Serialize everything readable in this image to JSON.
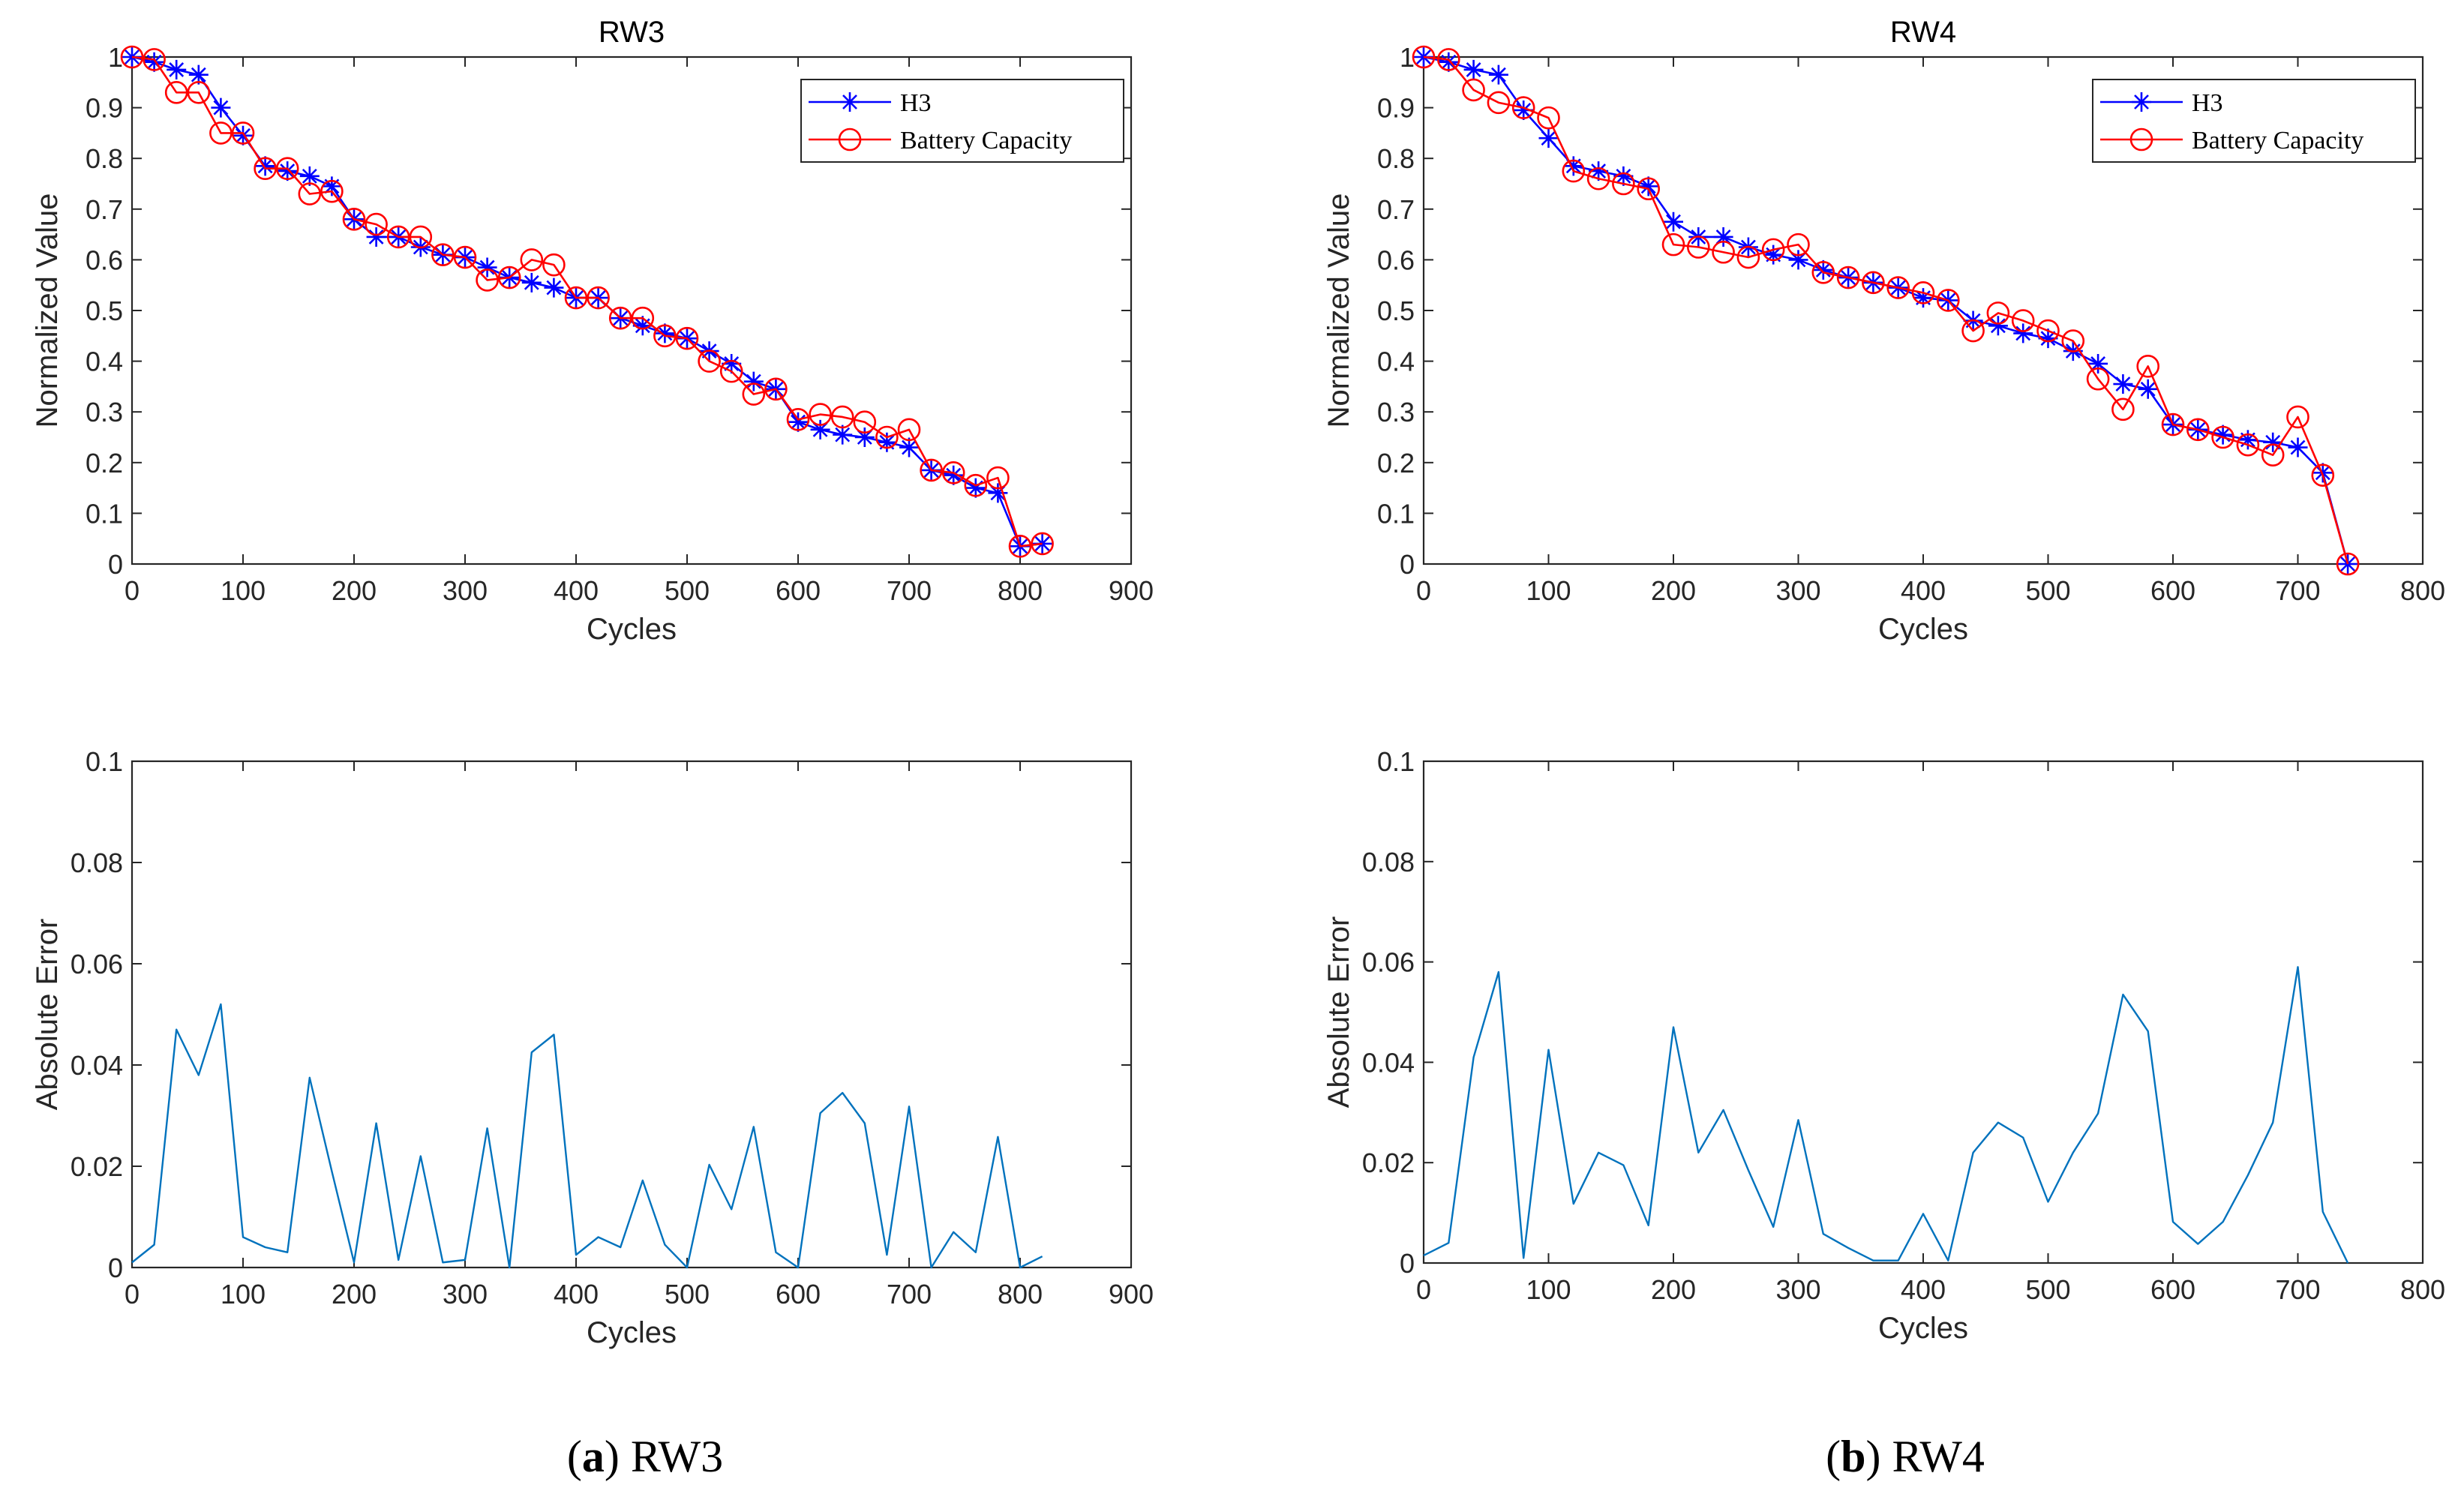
{
  "colors": {
    "h3": "#0000ff",
    "capacity": "#ff0000",
    "error": "#0072bd",
    "axis": "#262626"
  },
  "captions": [
    {
      "paren_open": "(",
      "letter": "a",
      "paren_close": ")",
      "label": " RW3"
    },
    {
      "paren_open": "(",
      "letter": "b",
      "paren_close": ")",
      "label": " RW4"
    }
  ],
  "chart_data": [
    {
      "id": "rw3-top",
      "type": "line",
      "title": "RW3",
      "xlabel": "Cycles",
      "ylabel": "Normalized Value",
      "xlim": [
        0,
        900
      ],
      "ylim": [
        0,
        1
      ],
      "xticks": [
        0,
        100,
        200,
        300,
        400,
        500,
        600,
        700,
        800,
        900
      ],
      "xtick_labels": [
        "0",
        "100",
        "200",
        "300",
        "400",
        "500",
        "600",
        "700",
        "800",
        "900"
      ],
      "yticks": [
        0,
        0.1,
        0.2,
        0.3,
        0.4,
        0.5,
        0.6,
        0.7,
        0.8,
        0.9,
        1
      ],
      "ytick_labels": [
        "0",
        "0.1",
        "0.2",
        "0.3",
        "0.4",
        "0.5",
        "0.6",
        "0.7",
        "0.8",
        "0.9",
        "1"
      ],
      "legend": "top-right",
      "x": [
        0,
        20,
        40,
        60,
        80,
        100,
        120,
        140,
        160,
        180,
        200,
        220,
        240,
        260,
        280,
        300,
        320,
        340,
        360,
        380,
        400,
        420,
        440,
        460,
        480,
        500,
        520,
        540,
        560,
        580,
        600,
        620,
        640,
        660,
        680,
        700,
        720,
        740,
        760,
        780,
        800,
        820
      ],
      "series": [
        {
          "name": "H3",
          "marker": "star",
          "color_key": "h3",
          "values": [
            1,
            0.99,
            0.975,
            0.965,
            0.9,
            0.845,
            0.785,
            0.775,
            0.765,
            0.745,
            0.68,
            0.645,
            0.645,
            0.625,
            0.61,
            0.605,
            0.585,
            0.565,
            0.555,
            0.545,
            0.525,
            0.525,
            0.485,
            0.47,
            0.455,
            0.445,
            0.42,
            0.395,
            0.36,
            0.345,
            0.28,
            0.265,
            0.255,
            0.25,
            0.24,
            0.23,
            0.185,
            0.175,
            0.15,
            0.14,
            0.035,
            0.04
          ]
        },
        {
          "name": "Battery Capacity",
          "marker": "circle",
          "color_key": "capacity",
          "values": [
            1,
            0.995,
            0.93,
            0.93,
            0.85,
            0.85,
            0.78,
            0.78,
            0.73,
            0.735,
            0.68,
            0.67,
            0.645,
            0.645,
            0.61,
            0.605,
            0.56,
            0.565,
            0.6,
            0.59,
            0.525,
            0.525,
            0.485,
            0.485,
            0.45,
            0.445,
            0.4,
            0.38,
            0.335,
            0.345,
            0.285,
            0.295,
            0.29,
            0.28,
            0.25,
            0.265,
            0.185,
            0.18,
            0.155,
            0.17,
            0.035,
            0.04
          ]
        }
      ]
    },
    {
      "id": "rw4-top",
      "type": "line",
      "title": "RW4",
      "xlabel": "Cycles",
      "ylabel": "Normalized Value",
      "xlim": [
        0,
        800
      ],
      "ylim": [
        0,
        1
      ],
      "xticks": [
        0,
        100,
        200,
        300,
        400,
        500,
        600,
        700,
        800
      ],
      "xtick_labels": [
        "0",
        "100",
        "200",
        "300",
        "400",
        "500",
        "600",
        "700",
        "800"
      ],
      "yticks": [
        0,
        0.1,
        0.2,
        0.3,
        0.4,
        0.5,
        0.6,
        0.7,
        0.8,
        0.9,
        1
      ],
      "ytick_labels": [
        "0",
        "0.1",
        "0.2",
        "0.3",
        "0.4",
        "0.5",
        "0.6",
        "0.7",
        "0.8",
        "0.9",
        "1"
      ],
      "legend": "top-right",
      "x": [
        0,
        20,
        40,
        60,
        80,
        100,
        120,
        140,
        160,
        180,
        200,
        220,
        240,
        260,
        280,
        300,
        320,
        340,
        360,
        380,
        400,
        420,
        440,
        460,
        480,
        500,
        520,
        540,
        560,
        580,
        600,
        620,
        640,
        660,
        680,
        700,
        720,
        740
      ],
      "series": [
        {
          "name": "H3",
          "marker": "star",
          "color_key": "h3",
          "values": [
            1,
            0.99,
            0.975,
            0.965,
            0.895,
            0.84,
            0.785,
            0.775,
            0.765,
            0.745,
            0.675,
            0.645,
            0.645,
            0.625,
            0.61,
            0.6,
            0.58,
            0.565,
            0.555,
            0.545,
            0.525,
            0.52,
            0.48,
            0.47,
            0.455,
            0.445,
            0.42,
            0.395,
            0.355,
            0.345,
            0.275,
            0.265,
            0.255,
            0.245,
            0.24,
            0.23,
            0.18,
            0
          ]
        },
        {
          "name": "Battery Capacity",
          "marker": "circle",
          "color_key": "capacity",
          "values": [
            1,
            0.995,
            0.935,
            0.91,
            0.9,
            0.88,
            0.775,
            0.76,
            0.75,
            0.74,
            0.63,
            0.625,
            0.615,
            0.605,
            0.62,
            0.63,
            0.575,
            0.565,
            0.555,
            0.545,
            0.535,
            0.52,
            0.46,
            0.495,
            0.48,
            0.46,
            0.44,
            0.365,
            0.305,
            0.39,
            0.275,
            0.265,
            0.25,
            0.235,
            0.215,
            0.29,
            0.175,
            0
          ]
        }
      ]
    },
    {
      "id": "rw3-bottom",
      "type": "line",
      "xlabel": "Cycles",
      "ylabel": "Absolute Error",
      "xlim": [
        0,
        900
      ],
      "ylim": [
        0,
        0.1
      ],
      "xticks": [
        0,
        100,
        200,
        300,
        400,
        500,
        600,
        700,
        800,
        900
      ],
      "xtick_labels": [
        "0",
        "100",
        "200",
        "300",
        "400",
        "500",
        "600",
        "700",
        "800",
        "900"
      ],
      "yticks": [
        0,
        0.02,
        0.04,
        0.06,
        0.08,
        0.1
      ],
      "ytick_labels": [
        "0",
        "0.02",
        "0.04",
        "0.06",
        "0.08",
        "0.1"
      ],
      "x": [
        0,
        20,
        40,
        60,
        80,
        100,
        120,
        140,
        160,
        180,
        200,
        220,
        240,
        260,
        280,
        300,
        320,
        340,
        360,
        380,
        400,
        420,
        440,
        460,
        480,
        500,
        520,
        540,
        560,
        580,
        600,
        620,
        640,
        660,
        680,
        700,
        720,
        740,
        760,
        780,
        800,
        820
      ],
      "series": [
        {
          "name": "Absolute Error",
          "color_key": "error",
          "values": [
            0.001,
            0.0045,
            0.047,
            0.038,
            0.052,
            0.006,
            0.004,
            0.003,
            0.0375,
            0.019,
            0.001,
            0.0285,
            0.0015,
            0.022,
            0.001,
            0.0015,
            0.0275,
            0.0,
            0.0425,
            0.046,
            0.0025,
            0.006,
            0.004,
            0.0172,
            0.0045,
            0.0,
            0.0203,
            0.0115,
            0.0278,
            0.003,
            0.0,
            0.0305,
            0.0345,
            0.0285,
            0.0025,
            0.0318,
            0.0,
            0.007,
            0.003,
            0.0258,
            0.0,
            0.0022
          ]
        }
      ]
    },
    {
      "id": "rw4-bottom",
      "type": "line",
      "xlabel": "Cycles",
      "ylabel": "Absolute Error",
      "xlim": [
        0,
        800
      ],
      "ylim": [
        0,
        0.1
      ],
      "xticks": [
        0,
        100,
        200,
        300,
        400,
        500,
        600,
        700,
        800
      ],
      "xtick_labels": [
        "0",
        "100",
        "200",
        "300",
        "400",
        "500",
        "600",
        "700",
        "800"
      ],
      "yticks": [
        0,
        0.02,
        0.04,
        0.06,
        0.08,
        0.1
      ],
      "ytick_labels": [
        "0",
        "0.02",
        "0.04",
        "0.06",
        "0.08",
        "0.1"
      ],
      "x": [
        0,
        20,
        40,
        60,
        80,
        100,
        120,
        140,
        160,
        180,
        200,
        220,
        240,
        260,
        280,
        300,
        320,
        340,
        360,
        380,
        400,
        420,
        440,
        460,
        480,
        500,
        520,
        540,
        560,
        580,
        600,
        620,
        640,
        660,
        680,
        700,
        720,
        740
      ],
      "series": [
        {
          "name": "Absolute Error",
          "color_key": "error",
          "values": [
            0.0015,
            0.004,
            0.041,
            0.058,
            0.001,
            0.0425,
            0.0118,
            0.022,
            0.0195,
            0.0075,
            0.047,
            0.022,
            0.0305,
            0.0185,
            0.0072,
            0.0285,
            0.0058,
            0.003,
            0.0005,
            0.0005,
            0.0098,
            0.0005,
            0.022,
            0.028,
            0.025,
            0.0122,
            0.022,
            0.0298,
            0.0535,
            0.0462,
            0.0082,
            0.0038,
            0.0082,
            0.0175,
            0.028,
            0.059,
            0.0102,
            0.0
          ]
        }
      ]
    }
  ]
}
